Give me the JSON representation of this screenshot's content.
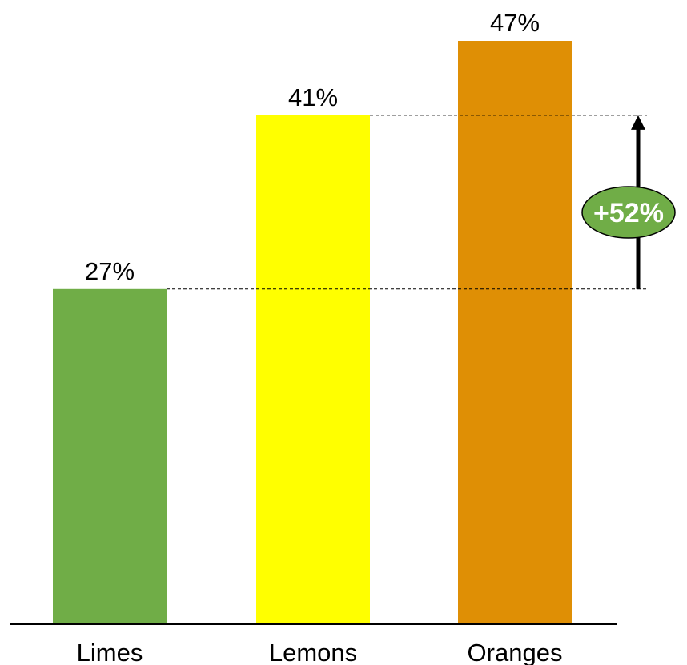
{
  "chart_data": {
    "type": "bar",
    "categories": [
      "Limes",
      "Lemons",
      "Oranges"
    ],
    "values": [
      27,
      41,
      47
    ],
    "data_labels": [
      "27%",
      "41%",
      "47%"
    ],
    "ylim": [
      0,
      50
    ],
    "title": "",
    "xlabel": "",
    "ylabel": "",
    "grid": false,
    "bar_colors": [
      "#70ad47",
      "#ffff00",
      "#df8f05"
    ],
    "annotation": {
      "text": "+52%",
      "from_category": "Limes",
      "to_category": "Lemons",
      "from_value": 27,
      "to_value": 41,
      "badge_color": "#70ad47",
      "arrow_color": "#000000"
    }
  }
}
